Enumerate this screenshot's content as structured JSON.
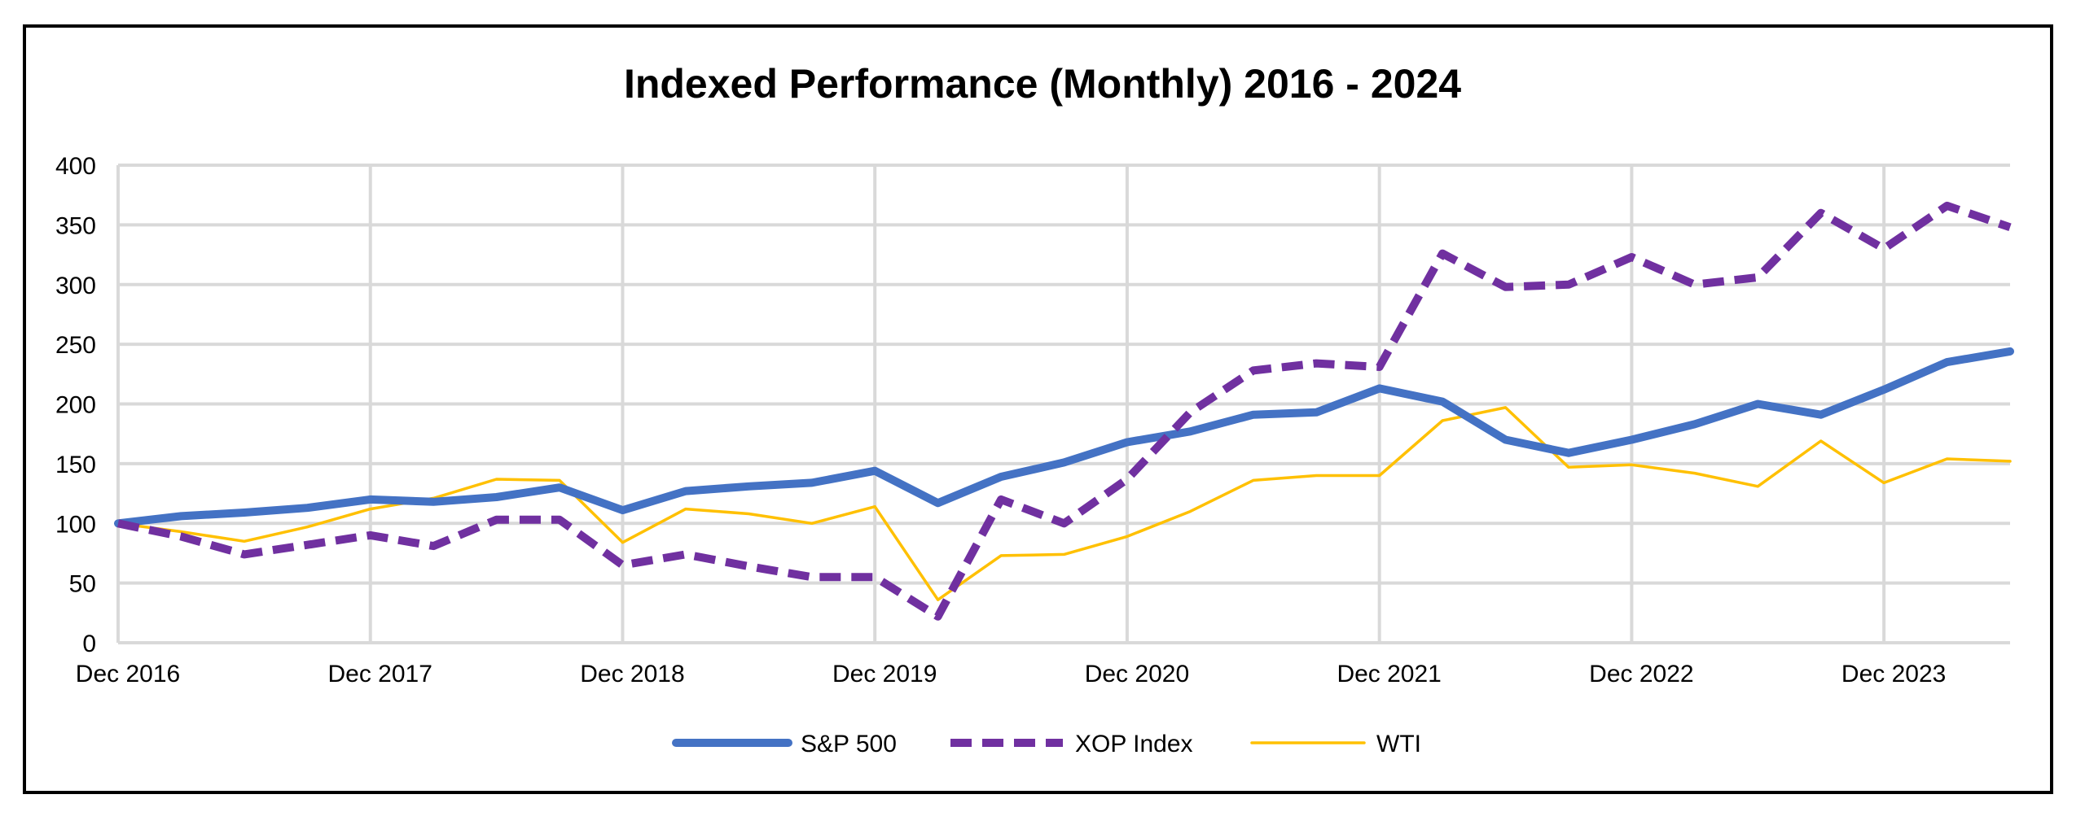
{
  "chart_data": {
    "type": "line",
    "title": "Indexed Performance (Monthly) 2016 - 2024",
    "xlabel": "",
    "ylabel": "",
    "ylim": [
      0,
      400
    ],
    "yticks": [
      "0",
      "50",
      "100",
      "150",
      "200",
      "250",
      "300",
      "350",
      "400"
    ],
    "xlim": [
      "Dec 2016",
      "Jun 2024"
    ],
    "xticks": [
      "Dec 2016",
      "Dec 2017",
      "Dec 2018",
      "Dec 2019",
      "Dec 2020",
      "Dec 2021",
      "Dec 2022",
      "Dec 2023"
    ],
    "grid": true,
    "legend_position": "bottom",
    "x": [
      "Dec 2016",
      "Mar 2017",
      "Jun 2017",
      "Sep 2017",
      "Dec 2017",
      "Mar 2018",
      "Jun 2018",
      "Sep 2018",
      "Dec 2018",
      "Mar 2019",
      "Jun 2019",
      "Sep 2019",
      "Dec 2019",
      "Mar 2020",
      "Jun 2020",
      "Sep 2020",
      "Dec 2020",
      "Mar 2021",
      "Jun 2021",
      "Sep 2021",
      "Dec 2021",
      "Mar 2022",
      "Jun 2022",
      "Sep 2022",
      "Dec 2022",
      "Mar 2023",
      "Jun 2023",
      "Sep 2023",
      "Dec 2023",
      "Mar 2024",
      "Jun 2024"
    ],
    "series": [
      {
        "name": "S&P 500",
        "color": "#4472C4",
        "style": "solid-thick",
        "values": [
          100,
          106,
          109,
          113,
          120,
          118,
          122,
          130,
          111,
          127,
          131,
          134,
          144,
          117,
          139,
          151,
          168,
          177,
          191,
          193,
          213,
          202,
          170,
          159,
          170,
          183,
          200,
          191,
          212,
          235,
          244
        ]
      },
      {
        "name": "XOP Index",
        "color": "#7030A0",
        "style": "dashed-thick",
        "values": [
          100,
          89,
          74,
          82,
          90,
          81,
          103,
          103,
          65,
          74,
          64,
          55,
          55,
          22,
          120,
          100,
          137,
          193,
          228,
          234,
          231,
          326,
          298,
          300,
          323,
          300,
          306,
          360,
          330,
          366,
          348
        ]
      },
      {
        "name": "WTI",
        "color": "#FFC000",
        "style": "solid-thin",
        "values": [
          100,
          93,
          85,
          97,
          112,
          121,
          137,
          136,
          84,
          112,
          108,
          100,
          114,
          36,
          73,
          74,
          89,
          110,
          136,
          140,
          140,
          186,
          197,
          147,
          149,
          142,
          131,
          169,
          134,
          154,
          152
        ]
      }
    ]
  }
}
